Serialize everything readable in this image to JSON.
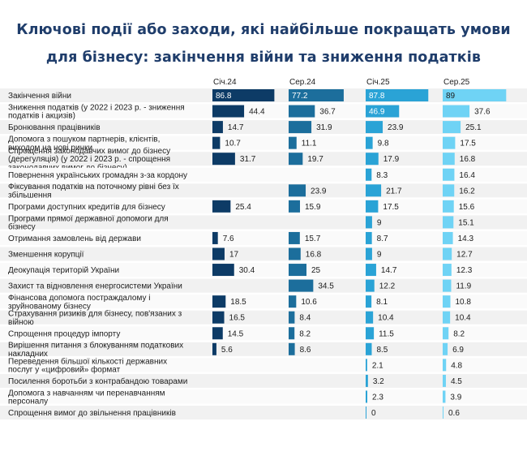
{
  "title_line1": "Ключові події або заходи, які найбільше покращать умови",
  "title_line2": "для бізнесу: закінчення війни та зниження податків",
  "chart_data": {
    "type": "bar",
    "title": "Ключові події або заходи, які найбільше покращать умови для бізнесу: закінчення війни та зниження податків",
    "categories": [
      [
        "Закінчення війни"
      ],
      [
        "Зниження податків (у 2022 і 2023 р. - зниження",
        "податків і акцизів)"
      ],
      [
        "Бронювання працівників"
      ],
      [
        "Допомога з пошуком партнерів, клієнтів,",
        "виходом на нові ринки"
      ],
      [
        "Спрощення законодавчих вимог до бізнесу",
        "(дерегуляція) (у 2022 і 2023 р. - спрощення",
        "законодавчих вимог до бізнесу)"
      ],
      [
        "Повернення українських громадян з-за кордону"
      ],
      [
        "Фіксування податків на поточному рівні без їх",
        "збільшення"
      ],
      [
        "Програми доступних кредитів для бізнесу"
      ],
      [
        "Програми прямої державної допомоги для",
        "бізнесу"
      ],
      [
        "Отримання замовлень від держави"
      ],
      [
        "Зменшення корупції"
      ],
      [
        "Деокупація територій України"
      ],
      [
        "Захист та відновлення енергосистеми України"
      ],
      [
        "Фінансова допомога постраждалому і",
        "зруйнованому бізнесу"
      ],
      [
        "Страхування ризиків для бізнесу, пов'язаних з",
        "війною"
      ],
      [
        "Спрощення процедур імпорту"
      ],
      [
        "Вирішення питання з блокуванням податкових",
        "накладних"
      ],
      [
        "Переведення більшої кількості державних",
        "послуг у «цифровий» формат"
      ],
      [
        "Посилення боротьби з контрабандою товарами"
      ],
      [
        "Допомога з навчанням чи перенавчанням",
        "персоналу"
      ],
      [
        "Спрощення вимог до звільнення працівників"
      ]
    ],
    "series": [
      {
        "name": "Січ.24",
        "color": "#0d3b66",
        "values": [
          86.8,
          44.4,
          14.7,
          10.7,
          31.7,
          null,
          null,
          25.4,
          null,
          7.6,
          17,
          30.4,
          null,
          18.5,
          16.5,
          14.5,
          5.6,
          null,
          null,
          null,
          null
        ]
      },
      {
        "name": "Сер.24",
        "color": "#1c6e9c",
        "values": [
          77.2,
          36.7,
          31.9,
          11.1,
          19.7,
          null,
          23.9,
          15.9,
          null,
          15.7,
          16.8,
          25,
          34.5,
          10.6,
          8.4,
          8.2,
          8.6,
          null,
          null,
          null,
          null
        ]
      },
      {
        "name": "Січ.25",
        "color": "#2aa3d6",
        "values": [
          87.8,
          46.9,
          23.9,
          9.8,
          17.9,
          8.3,
          21.7,
          17.5,
          9,
          8.7,
          9,
          14.7,
          12.2,
          8.1,
          10.4,
          11.5,
          8.5,
          2.1,
          3.2,
          2.3,
          0
        ]
      },
      {
        "name": "Сер.25",
        "color": "#6fd3f5",
        "values": [
          89,
          37.6,
          25.1,
          17.5,
          16.8,
          16.4,
          16.2,
          15.6,
          15.1,
          14.3,
          12.7,
          12.3,
          11.9,
          10.8,
          10.4,
          8.2,
          6.9,
          4.8,
          4.5,
          3.9,
          0.6
        ]
      }
    ],
    "xlim": [
      0,
      100
    ],
    "legend": "top",
    "grid": false
  }
}
